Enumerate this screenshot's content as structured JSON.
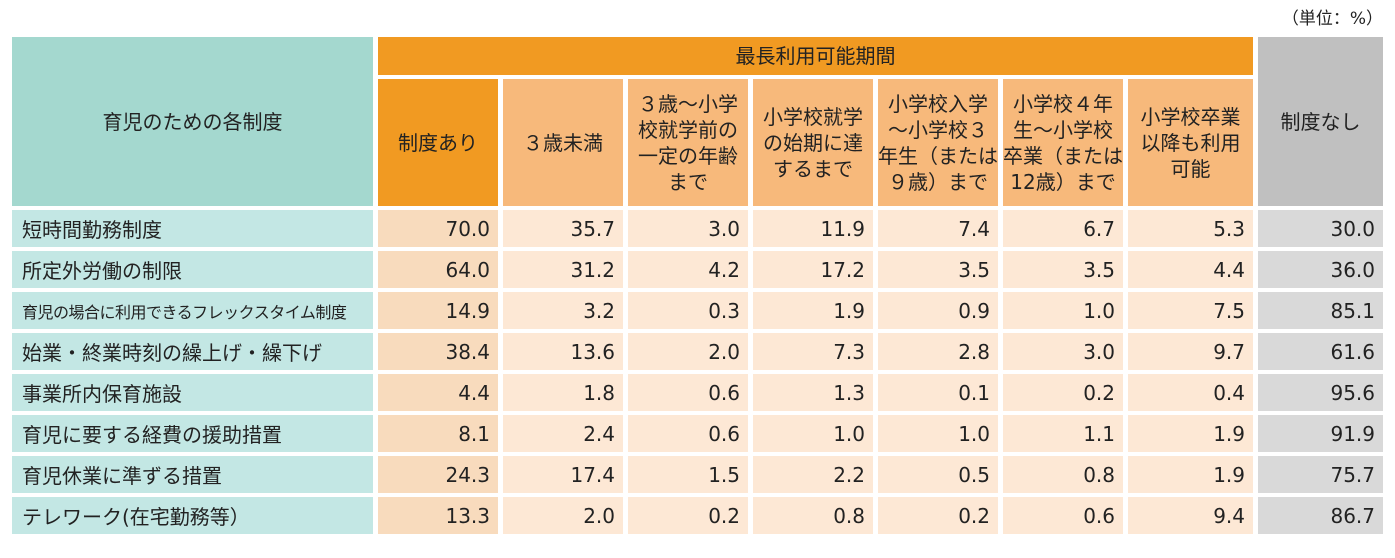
{
  "unit": "（単位：%）",
  "table": {
    "header": {
      "item": "育児のための各制度",
      "group": "最長利用可能期間",
      "has": "制度あり",
      "periods": [
        "３歳未満",
        "３歳～小学\n校就学前の\n一定の年齢\nまで",
        "小学校就学\nの始期に達\nするまで",
        "小学校入学\n～小学校３\n年生（または\n９歳）まで",
        "小学校４年\n生～小学校\n卒業（または\n12歳）まで",
        "小学校卒業\n以降も利用\n可能"
      ],
      "none": "制度なし"
    },
    "rows": [
      [
        "短時間勤務制度",
        "70.0",
        "35.7",
        "3.0",
        "11.9",
        "7.4",
        "6.7",
        "5.3",
        "30.0"
      ],
      [
        "所定外労働の制限",
        "64.0",
        "31.2",
        "4.2",
        "17.2",
        "3.5",
        "3.5",
        "4.4",
        "36.0"
      ],
      [
        "育児の場合に利用できるフレックスタイム制度",
        "14.9",
        "3.2",
        "0.3",
        "1.9",
        "0.9",
        "1.0",
        "7.5",
        "85.1"
      ],
      [
        "始業・終業時刻の繰上げ・繰下げ",
        "38.4",
        "13.6",
        "2.0",
        "7.3",
        "2.8",
        "3.0",
        "9.7",
        "61.6"
      ],
      [
        "事業所内保育施設",
        "4.4",
        "1.8",
        "0.6",
        "1.3",
        "0.1",
        "0.2",
        "0.4",
        "95.6"
      ],
      [
        "育児に要する経費の援助措置",
        "8.1",
        "2.4",
        "0.6",
        "1.0",
        "1.0",
        "1.1",
        "1.9",
        "91.9"
      ],
      [
        "育児休業に準ずる措置",
        "24.3",
        "17.4",
        "1.5",
        "2.2",
        "0.5",
        "0.8",
        "1.9",
        "75.7"
      ],
      [
        "テレワーク(在宅勤務等）",
        "13.3",
        "2.0",
        "0.2",
        "0.8",
        "0.2",
        "0.6",
        "9.4",
        "86.7"
      ]
    ]
  }
}
